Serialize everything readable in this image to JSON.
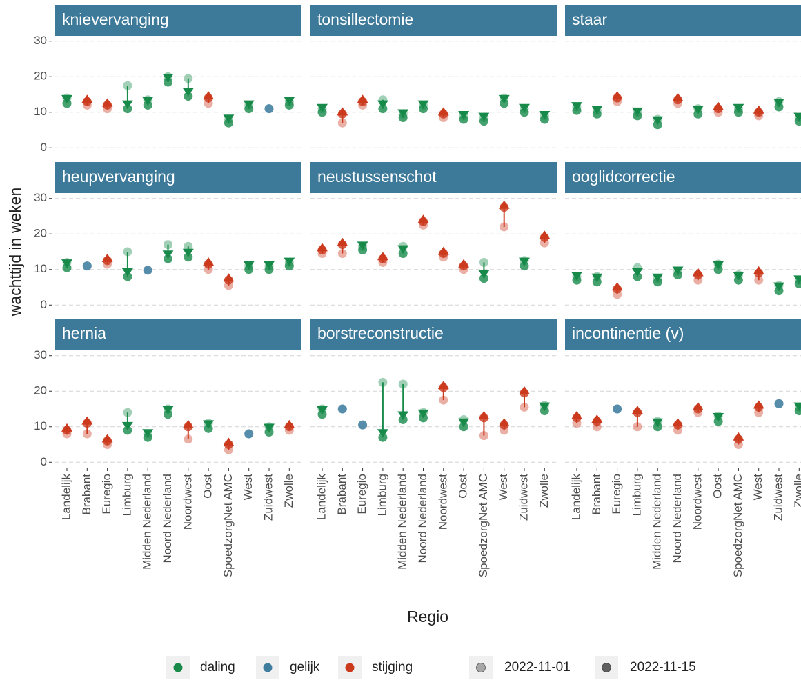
{
  "chart_data": {
    "type": "facet-arrow",
    "y_label": "wachttijd in weken",
    "x_label": "Regio",
    "categories": [
      "Landelijk",
      "Brabant",
      "Euregio",
      "Limburg",
      "Midden Nederland",
      "Noord Nederland",
      "Noordwest",
      "Oost",
      "SpoedzorgNet AMC",
      "West",
      "Zuidwest",
      "Zwolle"
    ],
    "ylim": [
      -1.5,
      31.5
    ],
    "yticks": [
      0,
      10,
      20,
      30
    ],
    "grid": true,
    "status_legend": [
      {
        "name": "daling",
        "color": "#178a4a"
      },
      {
        "name": "gelijk",
        "color": "#3f7d9f"
      },
      {
        "name": "stijging",
        "color": "#cc3a1e"
      }
    ],
    "strip_color": "#3d7a9a",
    "panels": [
      {
        "title": "knievervanging",
        "status": [
          "daling",
          "stijging",
          "stijging",
          "daling",
          "daling",
          "daling",
          "daling",
          "stijging",
          "daling",
          "daling",
          "gelijk",
          "daling"
        ],
        "series": [
          {
            "name": "2022-11-01",
            "values": [
              14,
              12,
              11,
              17.5,
              13.5,
              20,
              19.5,
              12.5,
              8,
              12,
              11,
              13
            ]
          },
          {
            "name": "2022-11-15",
            "values": [
              12.5,
              13,
              12,
              11,
              12,
              18.5,
              14.5,
              14,
              7,
              11,
              11,
              12
            ]
          }
        ]
      },
      {
        "title": "tonsillectomie",
        "status": [
          "daling",
          "stijging",
          "stijging",
          "daling",
          "daling",
          "daling",
          "stijging",
          "daling",
          "daling",
          "daling",
          "daling",
          "daling"
        ],
        "series": [
          {
            "name": "2022-11-01",
            "values": [
              11,
              7,
              12,
              13.5,
              9.5,
              12,
              8.5,
              9,
              8.5,
              14,
              11,
              9
            ]
          },
          {
            "name": "2022-11-15",
            "values": [
              10,
              9.5,
              13,
              11,
              8.5,
              11,
              9.5,
              8,
              7.5,
              12.5,
              10,
              8
            ]
          }
        ]
      },
      {
        "title": "staar",
        "status": [
          "daling",
          "daling",
          "stijging",
          "daling",
          "daling",
          "stijging",
          "daling",
          "stijging",
          "daling",
          "stijging",
          "daling",
          "daling"
        ],
        "series": [
          {
            "name": "2022-11-01",
            "values": [
              11.5,
              10.5,
              13,
              10,
              8,
              12.5,
              11,
              10,
              11,
              9,
              13,
              8.5
            ]
          },
          {
            "name": "2022-11-15",
            "values": [
              10.5,
              9.5,
              14,
              9,
              6.5,
              13.5,
              9.5,
              11,
              10,
              10,
              11.5,
              7.5
            ]
          }
        ]
      },
      {
        "title": "heupvervanging",
        "status": [
          "daling",
          "gelijk",
          "stijging",
          "daling",
          "gelijk",
          "daling",
          "daling",
          "stijging",
          "stijging",
          "daling",
          "daling",
          "daling"
        ],
        "series": [
          {
            "name": "2022-11-01",
            "values": [
              12,
              11,
              11.5,
              15,
              9.8,
              17,
              16.5,
              10,
              5.5,
              11,
              11,
              12
            ]
          },
          {
            "name": "2022-11-15",
            "values": [
              10.5,
              11,
              12.5,
              8,
              9.8,
              13,
              13.5,
              11.5,
              7,
              10,
              10,
              11
            ]
          }
        ]
      },
      {
        "title": "neustussenschot",
        "status": [
          "stijging",
          "stijging",
          "daling",
          "stijging",
          "daling",
          "stijging",
          "stijging",
          "stijging",
          "daling",
          "stijging",
          "daling",
          "stijging"
        ],
        "series": [
          {
            "name": "2022-11-01",
            "values": [
              14.5,
              14.5,
              16.5,
              12,
              16.5,
              22.5,
              13.5,
              10,
              12,
              22,
              12.5,
              17.5
            ]
          },
          {
            "name": "2022-11-15",
            "values": [
              15.5,
              17,
              15.5,
              13,
              14.5,
              23.5,
              14.5,
              11,
              7.5,
              27.5,
              11,
              19
            ]
          }
        ]
      },
      {
        "title": "ooglidcorrectie",
        "status": [
          "daling",
          "daling",
          "stijging",
          "daling",
          "daling",
          "daling",
          "stijging",
          "daling",
          "daling",
          "stijging",
          "daling",
          "daling"
        ],
        "series": [
          {
            "name": "2022-11-01",
            "values": [
              8,
              8,
              3,
              10.5,
              7.5,
              9.5,
              7,
              11.5,
              8.5,
              7,
              5.5,
              7
            ]
          },
          {
            "name": "2022-11-15",
            "values": [
              7,
              6.5,
              4.5,
              8,
              6.5,
              8.5,
              8.5,
              10,
              7,
              9,
              4,
              6
            ]
          }
        ]
      },
      {
        "title": "hernia",
        "status": [
          "stijging",
          "stijging",
          "stijging",
          "daling",
          "daling",
          "daling",
          "stijging",
          "daling",
          "stijging",
          "gelijk",
          "daling",
          "stijging"
        ],
        "series": [
          {
            "name": "2022-11-01",
            "values": [
              8,
              8,
              5,
              14,
              8,
              15,
              6.5,
              11,
              3.5,
              8,
              10,
              9
            ]
          },
          {
            "name": "2022-11-15",
            "values": [
              9,
              11,
              6,
              9,
              7,
              13.5,
              10,
              9.5,
              5,
              8,
              8.5,
              10
            ]
          }
        ]
      },
      {
        "title": "borstreconstructie",
        "status": [
          "daling",
          "gelijk",
          "gelijk",
          "daling",
          "daling",
          "daling",
          "stijging",
          "daling",
          "stijging",
          "stijging",
          "stijging",
          "daling"
        ],
        "series": [
          {
            "name": "2022-11-01",
            "values": [
              15,
              15,
              10.5,
              22.5,
              22,
              14,
              17.5,
              12,
              7.5,
              9,
              15.5,
              16
            ]
          },
          {
            "name": "2022-11-15",
            "values": [
              13.5,
              15,
              10.5,
              7,
              12,
              12.5,
              21,
              10,
              12.5,
              10.5,
              19.5,
              14.5
            ]
          }
        ]
      },
      {
        "title": "incontinentie (v)",
        "status": [
          "stijging",
          "stijging",
          "gelijk",
          "stijging",
          "daling",
          "stijging",
          "stijging",
          "daling",
          "stijging",
          "stijging",
          "gelijk",
          "daling"
        ],
        "series": [
          {
            "name": "2022-11-01",
            "values": [
              11,
              10,
              15,
              10,
              11.5,
              9,
              14,
              13,
              5,
              14,
              16.5,
              15.5
            ]
          },
          {
            "name": "2022-11-15",
            "values": [
              12.5,
              11.5,
              15,
              14,
              10,
              10.5,
              15,
              11.5,
              6.5,
              15.5,
              16.5,
              14.5
            ]
          }
        ]
      }
    ]
  }
}
